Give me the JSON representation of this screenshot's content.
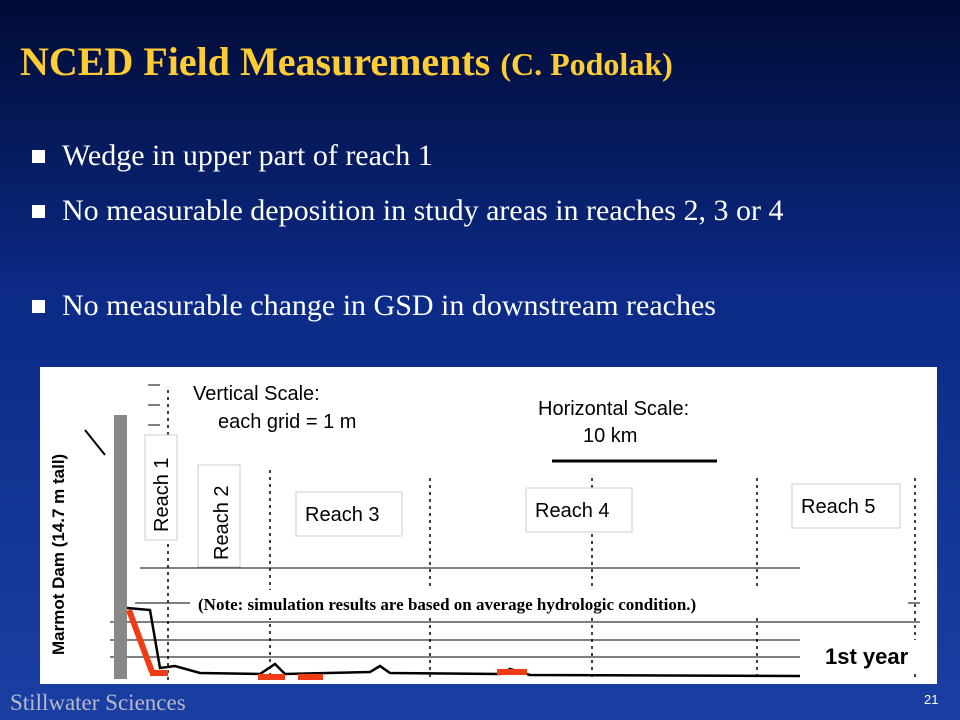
{
  "title": "NCED Field Measurements",
  "title_suffix": "(C. Podolak)",
  "bullets": [
    "Wedge in upper part of reach 1",
    "No measurable deposition in study areas in reaches 2, 3 or 4",
    "No measurable change in GSD in downstream reaches"
  ],
  "figure": {
    "dam_label": "Marmot Dam (14.7 m tall)",
    "vertical_scale": "Vertical Scale:",
    "vertical_grid": "each grid = 1 m",
    "horizontal_scale": "Horizontal Scale:",
    "horizontal_length": "10 km",
    "reaches": [
      "Reach 1",
      "Reach 2",
      "Reach 3",
      "Reach 4",
      "Reach 5"
    ],
    "note": "(Note: simulation results are based on average hydrologic condition.)",
    "year_label": "1st year"
  },
  "footer": {
    "logo": "Stillwater Sciences",
    "page": "21"
  }
}
